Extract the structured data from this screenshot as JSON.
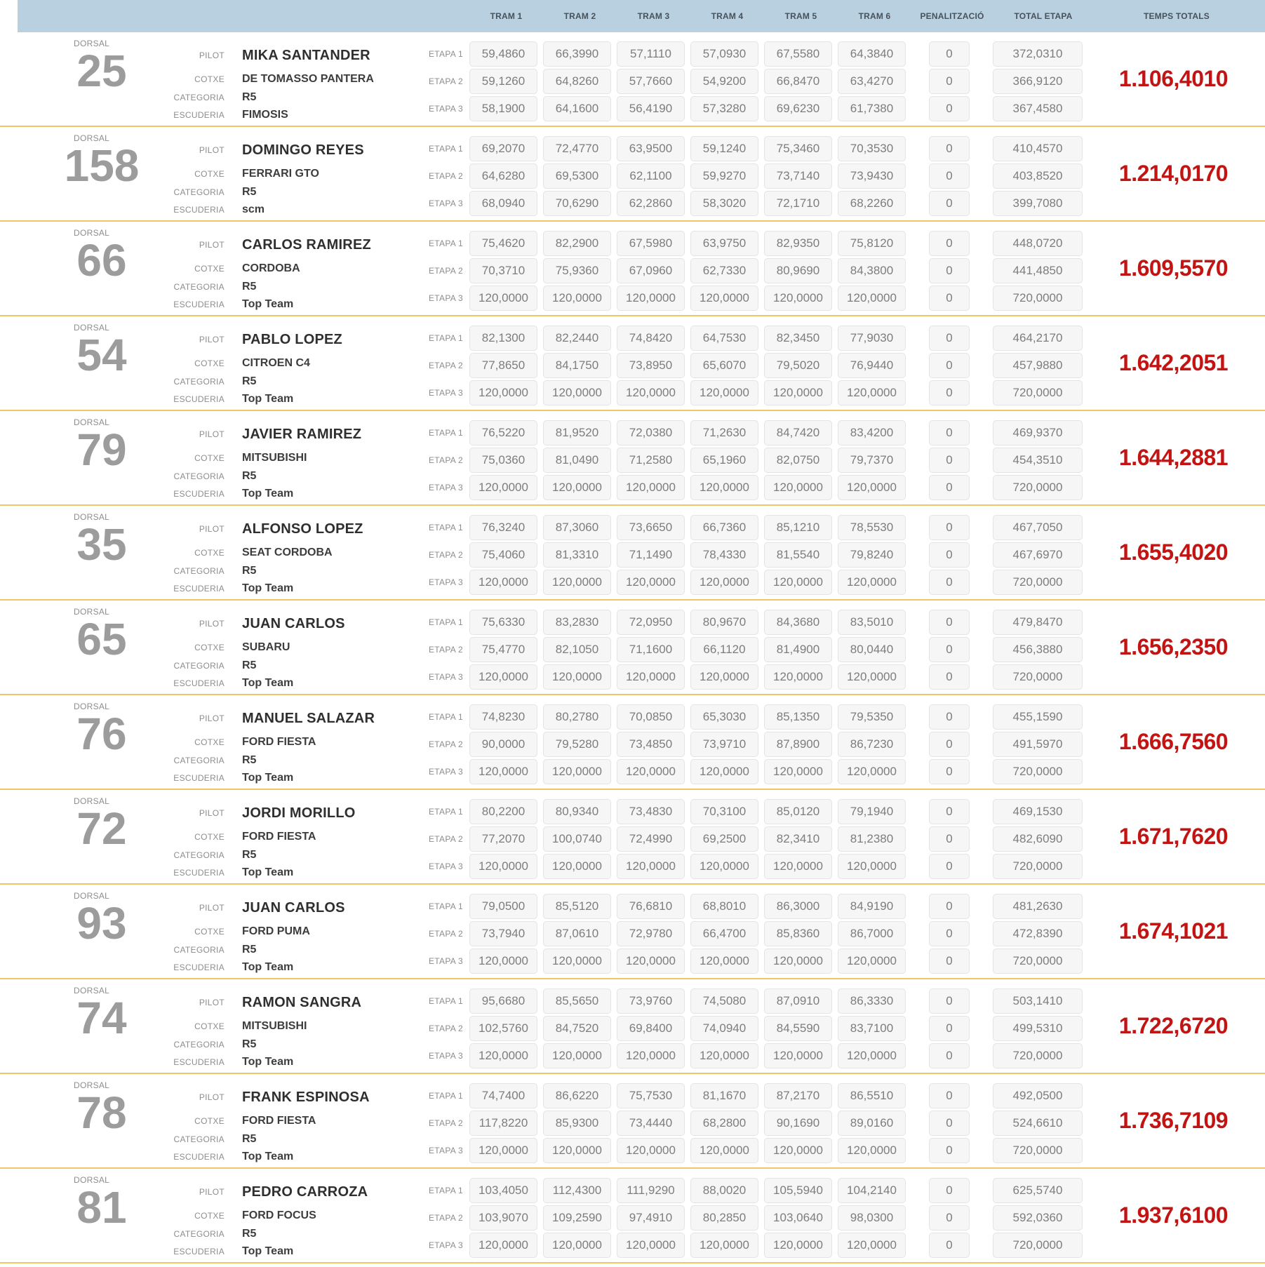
{
  "colors": {
    "header_bg": "#b9d0e0",
    "divider_yellow": "#eec868",
    "box_bg": "#f6f6f6",
    "box_border": "#e4e4e4",
    "total_red": "#c31414",
    "dorsal_gray": "#9c9c9c"
  },
  "header": {
    "columns": [
      "TRAM 1",
      "TRAM 2",
      "TRAM 3",
      "TRAM 4",
      "TRAM 5",
      "TRAM 6",
      "PENALITZACIÓ",
      "TOTAL ETAPA",
      "TEMPS TOTALS"
    ]
  },
  "labels": {
    "dorsal": "DORSAL",
    "pilot": "PILOT",
    "cotxe": "COTXE",
    "categoria": "CATEGORIA",
    "escuderia": "ESCUDERIA"
  },
  "entries": [
    {
      "dorsal": "25",
      "pilot": "MIKA SANTANDER",
      "cotxe": "DE TOMASSO PANTERA",
      "categoria": "R5",
      "escuderia": "FIMOSIS",
      "temps_total": "1.106,4010",
      "etapes": [
        {
          "label": "ETAPA 1",
          "trams": [
            "59,4860",
            "66,3990",
            "57,1110",
            "57,0930",
            "67,5580",
            "64,3840"
          ],
          "penalty": "0",
          "total": "372,0310"
        },
        {
          "label": "ETAPA 2",
          "trams": [
            "59,1260",
            "64,8260",
            "57,7660",
            "54,9200",
            "66,8470",
            "63,4270"
          ],
          "penalty": "0",
          "total": "366,9120"
        },
        {
          "label": "ETAPA 3",
          "trams": [
            "58,1900",
            "64,1600",
            "56,4190",
            "57,3280",
            "69,6230",
            "61,7380"
          ],
          "penalty": "0",
          "total": "367,4580"
        }
      ]
    },
    {
      "dorsal": "158",
      "pilot": "DOMINGO REYES",
      "cotxe": "FERRARI GTO",
      "categoria": "R5",
      "escuderia": "scm",
      "temps_total": "1.214,0170",
      "etapes": [
        {
          "label": "ETAPA 1",
          "trams": [
            "69,2070",
            "72,4770",
            "63,9500",
            "59,1240",
            "75,3460",
            "70,3530"
          ],
          "penalty": "0",
          "total": "410,4570"
        },
        {
          "label": "ETAPA 2",
          "trams": [
            "64,6280",
            "69,5300",
            "62,1100",
            "59,9270",
            "73,7140",
            "73,9430"
          ],
          "penalty": "0",
          "total": "403,8520"
        },
        {
          "label": "ETAPA 3",
          "trams": [
            "68,0940",
            "70,6290",
            "62,2860",
            "58,3020",
            "72,1710",
            "68,2260"
          ],
          "penalty": "0",
          "total": "399,7080"
        }
      ]
    },
    {
      "dorsal": "66",
      "pilot": "CARLOS RAMIREZ",
      "cotxe": "CORDOBA",
      "categoria": "R5",
      "escuderia": "Top Team",
      "temps_total": "1.609,5570",
      "etapes": [
        {
          "label": "ETAPA 1",
          "trams": [
            "75,4620",
            "82,2900",
            "67,5980",
            "63,9750",
            "82,9350",
            "75,8120"
          ],
          "penalty": "0",
          "total": "448,0720"
        },
        {
          "label": "ETAPA 2",
          "trams": [
            "70,3710",
            "75,9360",
            "67,0960",
            "62,7330",
            "80,9690",
            "84,3800"
          ],
          "penalty": "0",
          "total": "441,4850"
        },
        {
          "label": "ETAPA 3",
          "trams": [
            "120,0000",
            "120,0000",
            "120,0000",
            "120,0000",
            "120,0000",
            "120,0000"
          ],
          "penalty": "0",
          "total": "720,0000"
        }
      ]
    },
    {
      "dorsal": "54",
      "pilot": "PABLO LOPEZ",
      "cotxe": "CITROEN C4",
      "categoria": "R5",
      "escuderia": "Top Team",
      "temps_total": "1.642,2051",
      "etapes": [
        {
          "label": "ETAPA 1",
          "trams": [
            "82,1300",
            "82,2440",
            "74,8420",
            "64,7530",
            "82,3450",
            "77,9030"
          ],
          "penalty": "0",
          "total": "464,2170"
        },
        {
          "label": "ETAPA 2",
          "trams": [
            "77,8650",
            "84,1750",
            "73,8950",
            "65,6070",
            "79,5020",
            "76,9440"
          ],
          "penalty": "0",
          "total": "457,9880"
        },
        {
          "label": "ETAPA 3",
          "trams": [
            "120,0000",
            "120,0000",
            "120,0000",
            "120,0000",
            "120,0000",
            "120,0000"
          ],
          "penalty": "0",
          "total": "720,0000"
        }
      ]
    },
    {
      "dorsal": "79",
      "pilot": "JAVIER RAMIREZ",
      "cotxe": "MITSUBISHI",
      "categoria": "R5",
      "escuderia": "Top Team",
      "temps_total": "1.644,2881",
      "etapes": [
        {
          "label": "ETAPA 1",
          "trams": [
            "76,5220",
            "81,9520",
            "72,0380",
            "71,2630",
            "84,7420",
            "83,4200"
          ],
          "penalty": "0",
          "total": "469,9370"
        },
        {
          "label": "ETAPA 2",
          "trams": [
            "75,0360",
            "81,0490",
            "71,2580",
            "65,1960",
            "82,0750",
            "79,7370"
          ],
          "penalty": "0",
          "total": "454,3510"
        },
        {
          "label": "ETAPA 3",
          "trams": [
            "120,0000",
            "120,0000",
            "120,0000",
            "120,0000",
            "120,0000",
            "120,0000"
          ],
          "penalty": "0",
          "total": "720,0000"
        }
      ]
    },
    {
      "dorsal": "35",
      "pilot": "ALFONSO LOPEZ",
      "cotxe": "SEAT CORDOBA",
      "categoria": "R5",
      "escuderia": "Top Team",
      "temps_total": "1.655,4020",
      "etapes": [
        {
          "label": "ETAPA 1",
          "trams": [
            "76,3240",
            "87,3060",
            "73,6650",
            "66,7360",
            "85,1210",
            "78,5530"
          ],
          "penalty": "0",
          "total": "467,7050"
        },
        {
          "label": "ETAPA 2",
          "trams": [
            "75,4060",
            "81,3310",
            "71,1490",
            "78,4330",
            "81,5540",
            "79,8240"
          ],
          "penalty": "0",
          "total": "467,6970"
        },
        {
          "label": "ETAPA 3",
          "trams": [
            "120,0000",
            "120,0000",
            "120,0000",
            "120,0000",
            "120,0000",
            "120,0000"
          ],
          "penalty": "0",
          "total": "720,0000"
        }
      ]
    },
    {
      "dorsal": "65",
      "pilot": "JUAN CARLOS",
      "cotxe": "SUBARU",
      "categoria": "R5",
      "escuderia": "Top Team",
      "temps_total": "1.656,2350",
      "etapes": [
        {
          "label": "ETAPA 1",
          "trams": [
            "75,6330",
            "83,2830",
            "72,0950",
            "80,9670",
            "84,3680",
            "83,5010"
          ],
          "penalty": "0",
          "total": "479,8470"
        },
        {
          "label": "ETAPA 2",
          "trams": [
            "75,4770",
            "82,1050",
            "71,1600",
            "66,1120",
            "81,4900",
            "80,0440"
          ],
          "penalty": "0",
          "total": "456,3880"
        },
        {
          "label": "ETAPA 3",
          "trams": [
            "120,0000",
            "120,0000",
            "120,0000",
            "120,0000",
            "120,0000",
            "120,0000"
          ],
          "penalty": "0",
          "total": "720,0000"
        }
      ]
    },
    {
      "dorsal": "76",
      "pilot": "MANUEL SALAZAR",
      "cotxe": "FORD FIESTA",
      "categoria": "R5",
      "escuderia": "Top Team",
      "temps_total": "1.666,7560",
      "etapes": [
        {
          "label": "ETAPA 1",
          "trams": [
            "74,8230",
            "80,2780",
            "70,0850",
            "65,3030",
            "85,1350",
            "79,5350"
          ],
          "penalty": "0",
          "total": "455,1590"
        },
        {
          "label": "ETAPA 2",
          "trams": [
            "90,0000",
            "79,5280",
            "73,4850",
            "73,9710",
            "87,8900",
            "86,7230"
          ],
          "penalty": "0",
          "total": "491,5970"
        },
        {
          "label": "ETAPA 3",
          "trams": [
            "120,0000",
            "120,0000",
            "120,0000",
            "120,0000",
            "120,0000",
            "120,0000"
          ],
          "penalty": "0",
          "total": "720,0000"
        }
      ]
    },
    {
      "dorsal": "72",
      "pilot": "JORDI MORILLO",
      "cotxe": "FORD FIESTA",
      "categoria": "R5",
      "escuderia": "Top Team",
      "temps_total": "1.671,7620",
      "etapes": [
        {
          "label": "ETAPA 1",
          "trams": [
            "80,2200",
            "80,9340",
            "73,4830",
            "70,3100",
            "85,0120",
            "79,1940"
          ],
          "penalty": "0",
          "total": "469,1530"
        },
        {
          "label": "ETAPA 2",
          "trams": [
            "77,2070",
            "100,0740",
            "72,4990",
            "69,2500",
            "82,3410",
            "81,2380"
          ],
          "penalty": "0",
          "total": "482,6090"
        },
        {
          "label": "ETAPA 3",
          "trams": [
            "120,0000",
            "120,0000",
            "120,0000",
            "120,0000",
            "120,0000",
            "120,0000"
          ],
          "penalty": "0",
          "total": "720,0000"
        }
      ]
    },
    {
      "dorsal": "93",
      "pilot": "JUAN CARLOS",
      "cotxe": "FORD PUMA",
      "categoria": "R5",
      "escuderia": "Top Team",
      "temps_total": "1.674,1021",
      "etapes": [
        {
          "label": "ETAPA 1",
          "trams": [
            "79,0500",
            "85,5120",
            "76,6810",
            "68,8010",
            "86,3000",
            "84,9190"
          ],
          "penalty": "0",
          "total": "481,2630"
        },
        {
          "label": "ETAPA 2",
          "trams": [
            "73,7940",
            "87,0610",
            "72,9780",
            "66,4700",
            "85,8360",
            "86,7000"
          ],
          "penalty": "0",
          "total": "472,8390"
        },
        {
          "label": "ETAPA 3",
          "trams": [
            "120,0000",
            "120,0000",
            "120,0000",
            "120,0000",
            "120,0000",
            "120,0000"
          ],
          "penalty": "0",
          "total": "720,0000"
        }
      ]
    },
    {
      "dorsal": "74",
      "pilot": "RAMON SANGRA",
      "cotxe": "MITSUBISHI",
      "categoria": "R5",
      "escuderia": "Top Team",
      "temps_total": "1.722,6720",
      "etapes": [
        {
          "label": "ETAPA 1",
          "trams": [
            "95,6680",
            "85,5650",
            "73,9760",
            "74,5080",
            "87,0910",
            "86,3330"
          ],
          "penalty": "0",
          "total": "503,1410"
        },
        {
          "label": "ETAPA 2",
          "trams": [
            "102,5760",
            "84,7520",
            "69,8400",
            "74,0940",
            "84,5590",
            "83,7100"
          ],
          "penalty": "0",
          "total": "499,5310"
        },
        {
          "label": "ETAPA 3",
          "trams": [
            "120,0000",
            "120,0000",
            "120,0000",
            "120,0000",
            "120,0000",
            "120,0000"
          ],
          "penalty": "0",
          "total": "720,0000"
        }
      ]
    },
    {
      "dorsal": "78",
      "pilot": "FRANK ESPINOSA",
      "cotxe": "FORD FIESTA",
      "categoria": "R5",
      "escuderia": "Top Team",
      "temps_total": "1.736,7109",
      "etapes": [
        {
          "label": "ETAPA 1",
          "trams": [
            "74,7400",
            "86,6220",
            "75,7530",
            "81,1670",
            "87,2170",
            "86,5510"
          ],
          "penalty": "0",
          "total": "492,0500"
        },
        {
          "label": "ETAPA 2",
          "trams": [
            "117,8220",
            "85,9300",
            "73,4440",
            "68,2800",
            "90,1690",
            "89,0160"
          ],
          "penalty": "0",
          "total": "524,6610"
        },
        {
          "label": "ETAPA 3",
          "trams": [
            "120,0000",
            "120,0000",
            "120,0000",
            "120,0000",
            "120,0000",
            "120,0000"
          ],
          "penalty": "0",
          "total": "720,0000"
        }
      ]
    },
    {
      "dorsal": "81",
      "pilot": "PEDRO CARROZA",
      "cotxe": "FORD FOCUS",
      "categoria": "R5",
      "escuderia": "Top Team",
      "temps_total": "1.937,6100",
      "etapes": [
        {
          "label": "ETAPA 1",
          "trams": [
            "103,4050",
            "112,4300",
            "111,9290",
            "88,0020",
            "105,5940",
            "104,2140"
          ],
          "penalty": "0",
          "total": "625,5740"
        },
        {
          "label": "ETAPA 2",
          "trams": [
            "103,9070",
            "109,2590",
            "97,4910",
            "80,2850",
            "103,0640",
            "98,0300"
          ],
          "penalty": "0",
          "total": "592,0360"
        },
        {
          "label": "ETAPA 3",
          "trams": [
            "120,0000",
            "120,0000",
            "120,0000",
            "120,0000",
            "120,0000",
            "120,0000"
          ],
          "penalty": "0",
          "total": "720,0000"
        }
      ]
    }
  ]
}
